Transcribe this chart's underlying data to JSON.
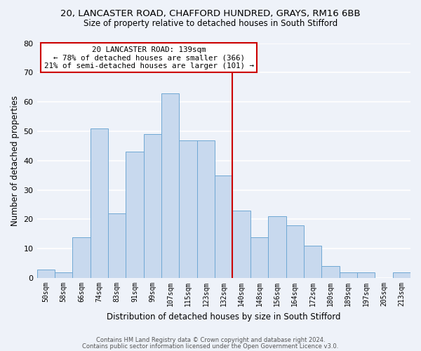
{
  "title_line1": "20, LANCASTER ROAD, CHAFFORD HUNDRED, GRAYS, RM16 6BB",
  "title_line2": "Size of property relative to detached houses in South Stifford",
  "xlabel": "Distribution of detached houses by size in South Stifford",
  "ylabel": "Number of detached properties",
  "bar_labels": [
    "50sqm",
    "58sqm",
    "66sqm",
    "74sqm",
    "83sqm",
    "91sqm",
    "99sqm",
    "107sqm",
    "115sqm",
    "123sqm",
    "132sqm",
    "140sqm",
    "148sqm",
    "156sqm",
    "164sqm",
    "172sqm",
    "180sqm",
    "189sqm",
    "197sqm",
    "205sqm",
    "213sqm"
  ],
  "bar_values": [
    3,
    2,
    14,
    51,
    22,
    43,
    49,
    63,
    47,
    47,
    35,
    23,
    14,
    21,
    18,
    11,
    4,
    2,
    2,
    0,
    2
  ],
  "bar_color": "#c8d9ee",
  "bar_edge_color": "#6fa8d4",
  "vline_color": "#cc0000",
  "annotation_title": "20 LANCASTER ROAD: 139sqm",
  "annotation_line1": "← 78% of detached houses are smaller (366)",
  "annotation_line2": "21% of semi-detached houses are larger (101) →",
  "annotation_box_color": "#ffffff",
  "annotation_box_edge": "#cc0000",
  "ylim": [
    0,
    80
  ],
  "yticks": [
    0,
    10,
    20,
    30,
    40,
    50,
    60,
    70,
    80
  ],
  "footer_line1": "Contains HM Land Registry data © Crown copyright and database right 2024.",
  "footer_line2": "Contains public sector information licensed under the Open Government Licence v3.0.",
  "bg_color": "#eef2f9"
}
